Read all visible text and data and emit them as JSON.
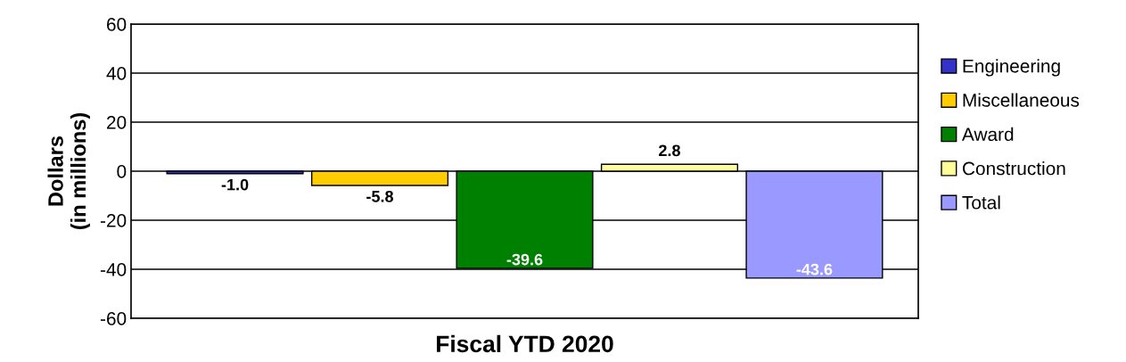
{
  "chart_data": {
    "type": "bar",
    "categories": [
      null
    ],
    "xlabel": "Fiscal YTD 2020",
    "ylabel": "Dollars\n(in millions)",
    "series": [
      {
        "name": "Engineering",
        "color": "#3333cc",
        "values": [
          -1.0
        ],
        "value_labels": [
          "-1.0"
        ]
      },
      {
        "name": "Miscellaneous",
        "color": "#ffcc00",
        "values": [
          -5.8
        ],
        "value_labels": [
          "-5.8"
        ]
      },
      {
        "name": "Award",
        "color": "#008000",
        "values": [
          -39.6
        ],
        "value_labels": [
          "-39.6"
        ]
      },
      {
        "name": "Construction",
        "color": "#ffff99",
        "values": [
          2.8
        ],
        "value_labels": [
          "2.8"
        ]
      },
      {
        "name": "Total",
        "color": "#9999ff",
        "values": [
          -43.6
        ],
        "value_labels": [
          "-43.6"
        ]
      }
    ],
    "ylim": [
      -60,
      60
    ],
    "yticks": [
      -60,
      -40,
      -20,
      0,
      20,
      40,
      60
    ],
    "grid": "y",
    "legend": "right"
  }
}
